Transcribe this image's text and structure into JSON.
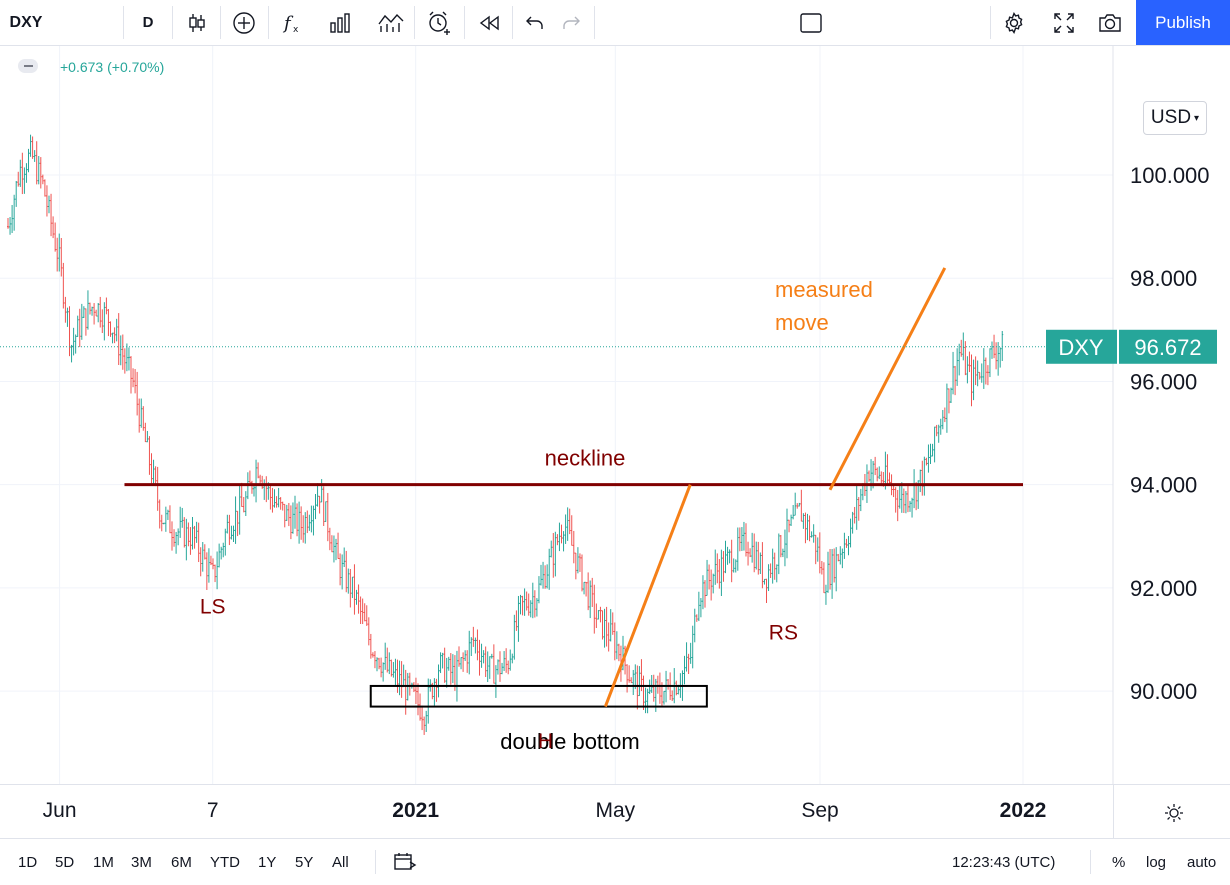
{
  "toolbar": {
    "symbol": "DXY",
    "interval": "D",
    "publish_label": "Publish"
  },
  "legend": {
    "change": "+0.673 (+0.70%)"
  },
  "currency": "USD",
  "colors": {
    "up_bar": "#26a69a",
    "down_bar": "#ef5350",
    "neckline": "#800000",
    "measured_move": "#f57f17",
    "price_tag": "#26a69a",
    "publish": "#2962ff"
  },
  "chart_data": {
    "type": "ohlc",
    "symbol": "DXY",
    "interval": "1D",
    "ylim": [
      88.2,
      102.5
    ],
    "y_ticks": [
      "100.000",
      "98.000",
      "96.000",
      "94.000",
      "92.000",
      "90.000"
    ],
    "x_ticks": [
      "Jun",
      "7",
      "2021",
      "May",
      "Sep",
      "2022"
    ],
    "last_price": "96.672",
    "last_price_label": "DXY",
    "close_path": [
      [
        "2020-05-01",
        99.0
      ],
      [
        "2020-05-08",
        100.1
      ],
      [
        "2020-05-15",
        100.4
      ],
      [
        "2020-05-22",
        99.8
      ],
      [
        "2020-06-01",
        98.3
      ],
      [
        "2020-06-08",
        96.7
      ],
      [
        "2020-06-15",
        97.2
      ],
      [
        "2020-06-22",
        97.5
      ],
      [
        "2020-07-01",
        97.2
      ],
      [
        "2020-07-08",
        96.6
      ],
      [
        "2020-07-15",
        96.0
      ],
      [
        "2020-07-22",
        94.9
      ],
      [
        "2020-08-01",
        93.4
      ],
      [
        "2020-08-10",
        93.1
      ],
      [
        "2020-08-20",
        93.0
      ],
      [
        "2020-09-01",
        92.2
      ],
      [
        "2020-09-10",
        93.2
      ],
      [
        "2020-09-20",
        93.6
      ],
      [
        "2020-09-28",
        94.4
      ],
      [
        "2020-10-05",
        93.8
      ],
      [
        "2020-10-15",
        93.4
      ],
      [
        "2020-10-25",
        93.2
      ],
      [
        "2020-11-04",
        93.9
      ],
      [
        "2020-11-15",
        92.5
      ],
      [
        "2020-11-25",
        91.9
      ],
      [
        "2020-12-05",
        90.9
      ],
      [
        "2020-12-15",
        90.4
      ],
      [
        "2020-12-25",
        90.1
      ],
      [
        "2021-01-06",
        89.6
      ],
      [
        "2021-01-15",
        90.5
      ],
      [
        "2021-01-25",
        90.3
      ],
      [
        "2021-02-05",
        91.0
      ],
      [
        "2021-02-15",
        90.4
      ],
      [
        "2021-02-25",
        90.5
      ],
      [
        "2021-03-05",
        91.6
      ],
      [
        "2021-03-15",
        91.9
      ],
      [
        "2021-03-25",
        92.7
      ],
      [
        "2021-03-31",
        93.3
      ],
      [
        "2021-04-10",
        92.3
      ],
      [
        "2021-04-20",
        91.4
      ],
      [
        "2021-04-30",
        91.0
      ],
      [
        "2021-05-10",
        90.3
      ],
      [
        "2021-05-20",
        89.9
      ],
      [
        "2021-05-30",
        90.0
      ],
      [
        "2021-06-08",
        90.2
      ],
      [
        "2021-06-15",
        90.6
      ],
      [
        "2021-06-20",
        91.9
      ],
      [
        "2021-06-30",
        92.3
      ],
      [
        "2021-07-10",
        92.6
      ],
      [
        "2021-07-20",
        92.9
      ],
      [
        "2021-07-30",
        92.2
      ],
      [
        "2021-08-08",
        92.8
      ],
      [
        "2021-08-20",
        93.5
      ],
      [
        "2021-08-30",
        92.8
      ],
      [
        "2021-09-03",
        92.1
      ],
      [
        "2021-09-10",
        92.5
      ],
      [
        "2021-09-20",
        93.2
      ],
      [
        "2021-09-30",
        94.3
      ],
      [
        "2021-10-10",
        94.1
      ],
      [
        "2021-10-20",
        93.7
      ],
      [
        "2021-10-28",
        93.9
      ],
      [
        "2021-11-05",
        94.4
      ],
      [
        "2021-11-12",
        95.2
      ],
      [
        "2021-11-18",
        95.9
      ],
      [
        "2021-11-24",
        96.6
      ],
      [
        "2021-12-01",
        96.0
      ],
      [
        "2021-12-08",
        96.3
      ],
      [
        "2021-12-15",
        96.6
      ],
      [
        "2021-12-20",
        96.67
      ]
    ],
    "annotations": {
      "neckline": {
        "label": "neckline",
        "y": 94.0,
        "x_start": "2020-07-10",
        "x_end": "2022-01-01"
      },
      "double_bottom": {
        "label": "double bottom",
        "x_start": "2020-12-05",
        "x_end": "2021-06-25",
        "y_low": 89.7,
        "y_high": 90.1
      },
      "measured_move_1": {
        "x1": "2021-04-25",
        "y1": 89.7,
        "x2": "2021-06-15",
        "y2": 94.0
      },
      "measured_move_2": {
        "label": "measured move",
        "x1": "2021-09-07",
        "y1": 93.9,
        "x2": "2021-11-15",
        "y2": 98.2
      },
      "LS": {
        "label": "LS",
        "x": "2020-09-01",
        "y": 91.5
      },
      "H": {
        "label": "H",
        "x": "2021-03-20",
        "y": 88.9
      },
      "RS": {
        "label": "RS",
        "x": "2021-08-10",
        "y": 91.0
      }
    }
  },
  "bottom": {
    "ranges": [
      "1D",
      "5D",
      "1M",
      "3M",
      "6M",
      "YTD",
      "1Y",
      "5Y",
      "All"
    ],
    "time": "12:23:43 (UTC)",
    "percent": "%",
    "log": "log",
    "auto": "auto"
  }
}
